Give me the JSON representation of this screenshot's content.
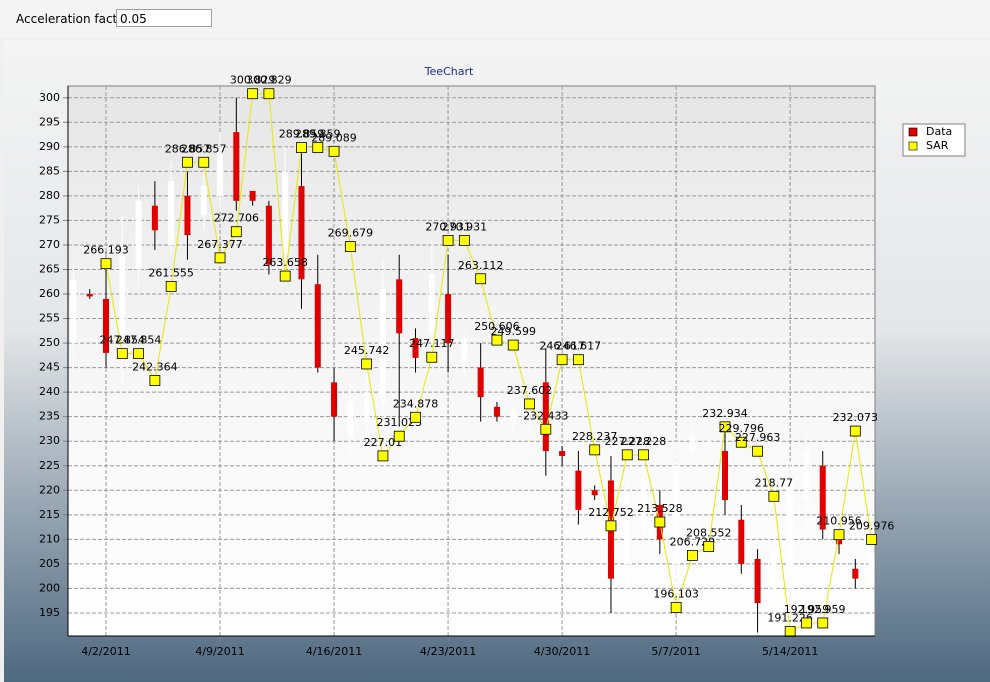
{
  "controls": {
    "label": "Acceleration factor",
    "value": "0.05"
  },
  "chart_data": {
    "type": "candlestick",
    "title": "TeeChart",
    "x": [
      "2011-03-31",
      "2011-04-01",
      "2011-04-02",
      "2011-04-03",
      "2011-04-04",
      "2011-04-05",
      "2011-04-06",
      "2011-04-07",
      "2011-04-08",
      "2011-04-09",
      "2011-04-10",
      "2011-04-11",
      "2011-04-12",
      "2011-04-13",
      "2011-04-14",
      "2011-04-15",
      "2011-04-16",
      "2011-04-17",
      "2011-04-18",
      "2011-04-19",
      "2011-04-20",
      "2011-04-21",
      "2011-04-22",
      "2011-04-23",
      "2011-04-24",
      "2011-04-25",
      "2011-04-26",
      "2011-04-27",
      "2011-04-28",
      "2011-04-29",
      "2011-04-30",
      "2011-05-01",
      "2011-05-02",
      "2011-05-03",
      "2011-05-04",
      "2011-05-05",
      "2011-05-06",
      "2011-05-07",
      "2011-05-08",
      "2011-05-09",
      "2011-05-10",
      "2011-05-11",
      "2011-05-12",
      "2011-05-13",
      "2011-05-14",
      "2011-05-15",
      "2011-05-16",
      "2011-05-17",
      "2011-05-18",
      "2011-05-19"
    ],
    "series": [
      {
        "name": "Data",
        "up_color": "#ffffff",
        "down_color": "#e00000",
        "open": [
          250,
          260,
          259,
          252,
          265,
          278,
          270,
          280,
          276,
          280,
          293,
          281,
          278,
          268,
          282,
          262,
          242,
          231,
          234,
          238,
          263,
          251,
          252,
          260,
          246,
          245,
          237,
          234,
          235,
          242,
          228,
          224,
          220,
          222,
          205,
          212,
          217,
          205,
          228,
          229,
          228,
          214,
          206,
          200,
          200,
          218,
          225,
          210,
          204,
          201
        ],
        "high": [
          266,
          261,
          265,
          276,
          282,
          283,
          287,
          285,
          285,
          293,
          300,
          281,
          279,
          290,
          290,
          268,
          245,
          242,
          246,
          267,
          268,
          253,
          271,
          268,
          252,
          250,
          238,
          237,
          242,
          249,
          229,
          228,
          221,
          227,
          222,
          226,
          220,
          230,
          233,
          231,
          232,
          217,
          208,
          210,
          226,
          232,
          228,
          211,
          206,
          209
        ],
        "low": [
          245,
          259,
          245,
          242,
          262,
          269,
          268,
          267,
          273,
          277,
          277,
          278,
          264,
          265,
          257,
          244,
          230,
          227,
          230,
          230,
          233,
          244,
          247,
          244,
          244,
          234,
          234,
          232,
          232,
          223,
          225,
          213,
          218,
          195,
          196,
          205,
          207,
          198,
          227,
          228,
          215,
          203,
          191,
          192,
          191,
          212,
          210,
          207,
          200,
          200
        ],
        "close": [
          263,
          259.5,
          248,
          268,
          279,
          273,
          283,
          272,
          282,
          290,
          279,
          279,
          266,
          285,
          263,
          245,
          235,
          238,
          240,
          261,
          252,
          247,
          264,
          250,
          251,
          239,
          235,
          236,
          240,
          228,
          227,
          216,
          219,
          202,
          219,
          222,
          210,
          225,
          231,
          230,
          218,
          205,
          197,
          207,
          222,
          228,
          212,
          209,
          202,
          207
        ]
      },
      {
        "name": "SAR",
        "color": "#ffff00",
        "line_color": "#e8e800",
        "values": [
          null,
          null,
          266.193,
          247.854,
          247.854,
          242.364,
          261.555,
          286.857,
          286.857,
          267.377,
          272.706,
          300.829,
          300.829,
          263.658,
          289.859,
          289.859,
          289.089,
          269.679,
          245.742,
          227.01,
          231.023,
          234.878,
          247.117,
          270.931,
          270.931,
          263.112,
          250.606,
          249.599,
          237.602,
          232.433,
          246.617,
          246.617,
          228.237,
          212.752,
          227.228,
          227.228,
          213.528,
          196.103,
          206.729,
          208.552,
          232.934,
          229.796,
          227.963,
          218.77,
          191.226,
          192.959,
          192.959,
          210.956,
          232.073,
          209.976
        ]
      }
    ],
    "xlim": [
      "2011-03-30T16:00",
      "2011-05-19T05:00"
    ],
    "xticks": [
      {
        "value": "2011-04-02",
        "label": "4/2/2011"
      },
      {
        "value": "2011-04-09",
        "label": "4/9/2011"
      },
      {
        "value": "2011-04-16",
        "label": "4/16/2011"
      },
      {
        "value": "2011-04-23",
        "label": "4/23/2011"
      },
      {
        "value": "2011-04-30",
        "label": "4/30/2011"
      },
      {
        "value": "2011-05-07",
        "label": "5/7/2011"
      },
      {
        "value": "2011-05-14",
        "label": "5/14/2011"
      }
    ],
    "ylim": [
      190.3,
      302.4
    ],
    "yticks": [
      195,
      200,
      205,
      210,
      215,
      220,
      225,
      230,
      235,
      240,
      245,
      250,
      255,
      260,
      265,
      270,
      275,
      280,
      285,
      290,
      295,
      300
    ],
    "grid": true,
    "legend": "right"
  }
}
